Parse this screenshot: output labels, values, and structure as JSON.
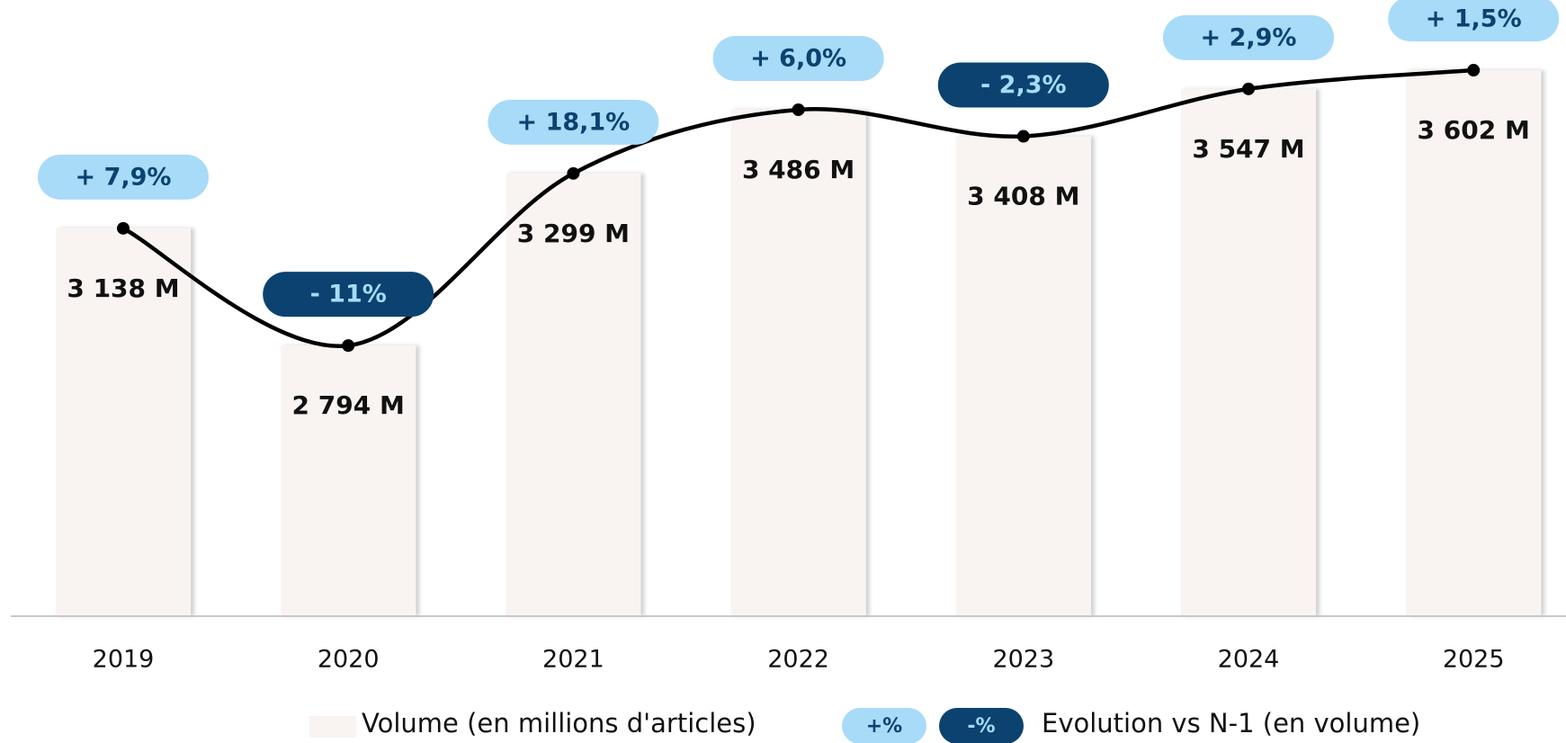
{
  "chart_data": {
    "type": "bar_line",
    "categories": [
      "2019",
      "2020",
      "2021",
      "2022",
      "2023",
      "2024",
      "2025"
    ],
    "ylim": [
      2000,
      3800
    ],
    "series": [
      {
        "name": "Volume (en millions d'articles)",
        "color": "#f9f4f2",
        "values": [
          3138,
          2794,
          3299,
          3486,
          3408,
          3547,
          3602
        ],
        "value_labels": [
          "3 138 M",
          "2 794 M",
          "3 299 M",
          "3 486 M",
          "3 408 M",
          "3 547 M",
          "3 602 M"
        ]
      },
      {
        "name": "Evolution vs N-1 (en volume)",
        "color": "#a8dbf8",
        "negative_color": "#0b4270",
        "values": [
          7.9,
          -11,
          18.1,
          6.0,
          -2.3,
          2.9,
          1.5
        ],
        "value_labels": [
          "+ 7,9%",
          "- 11%",
          "+ 18,1%",
          "+ 6,0%",
          "- 2,3%",
          "+ 2,9%",
          "+ 1,5%"
        ]
      }
    ],
    "legend_badges": [
      "+%",
      "-%"
    ]
  }
}
